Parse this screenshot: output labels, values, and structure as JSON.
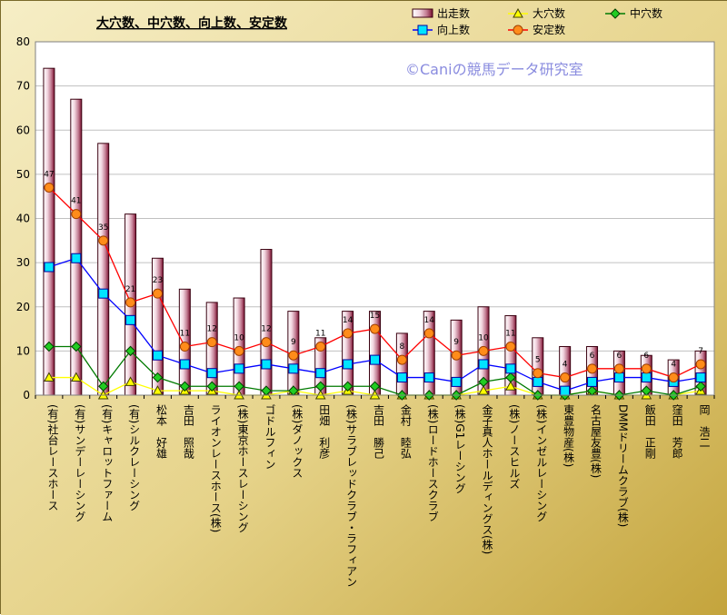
{
  "chart_data": {
    "type": "bar",
    "title": "大穴数、中穴数、向上数、安定数",
    "watermark": "©Caniの競馬データ研究室",
    "ylim": [
      0,
      80
    ],
    "yticks": [
      0,
      10,
      20,
      30,
      40,
      50,
      60,
      70,
      80
    ],
    "grid": "horizontal",
    "legend_position": "top-right",
    "categories": [
      "(有)社台レースホース",
      "(有)サンデーレーシング",
      "(有)キャロットファーム",
      "(有)シルクレーシング",
      "松本　好雄",
      "吉田　照哉",
      "ライオンレースホース(株)",
      "(株)東京ホースレーシング",
      "ゴドルフィン",
      "(株)ダノックス",
      "田畑　利彦",
      "(株)サラブレッドクラブ・ラフィアン",
      "吉田　勝己",
      "金村　睦弘",
      "(株)ロードホースクラブ",
      "(株)G1レーシング",
      "金子真人ホールディングス(株)",
      "(株)ノースヒルズ",
      "(株)インゼルレーシング",
      "東豊物産(株)",
      "名古屋友豊(株)",
      "DMMドリームクラブ(株)",
      "飯田　正剛",
      "窪田　芳郎",
      "岡　浩二"
    ],
    "series": [
      {
        "name": "出走数",
        "kind": "bar",
        "color": "#7a1030",
        "values": [
          74,
          67,
          57,
          41,
          31,
          24,
          21,
          22,
          33,
          19,
          13,
          19,
          19,
          14,
          19,
          17,
          20,
          18,
          13,
          11,
          11,
          10,
          9,
          8,
          10
        ]
      },
      {
        "name": "大穴数",
        "kind": "line",
        "color": "#ffff00",
        "marker": "triangle",
        "values": [
          4,
          4,
          0,
          3,
          1,
          1,
          1,
          0,
          0,
          1,
          0,
          1,
          0,
          0,
          0,
          0,
          1,
          2,
          0,
          0,
          1,
          0,
          0,
          0,
          1
        ]
      },
      {
        "name": "中穴数",
        "kind": "line",
        "color": "#007a00",
        "marker": "diamond",
        "values": [
          11,
          11,
          2,
          10,
          4,
          2,
          2,
          2,
          1,
          1,
          2,
          2,
          2,
          0,
          0,
          0,
          3,
          4,
          0,
          0,
          1,
          0,
          1,
          0,
          2
        ]
      },
      {
        "name": "向上数",
        "kind": "line",
        "color": "#0000ff",
        "marker": "square",
        "values": [
          29,
          31,
          23,
          17,
          9,
          7,
          5,
          6,
          7,
          6,
          5,
          7,
          8,
          4,
          4,
          3,
          7,
          6,
          3,
          1,
          3,
          4,
          4,
          3,
          4
        ]
      },
      {
        "name": "安定数",
        "kind": "line",
        "color": "#ff0000",
        "marker": "circle",
        "values": [
          47,
          41,
          35,
          21,
          23,
          11,
          12,
          10,
          12,
          9,
          11,
          14,
          15,
          8,
          14,
          9,
          10,
          11,
          5,
          4,
          6,
          6,
          6,
          4,
          7
        ]
      }
    ],
    "data_labels": {
      "series": "安定数",
      "values": [
        47,
        41,
        35,
        21,
        23,
        11,
        12,
        10,
        12,
        9,
        11,
        14,
        15,
        8,
        14,
        9,
        10,
        11,
        5,
        4,
        6,
        6,
        6,
        4,
        7
      ]
    }
  },
  "colors": {
    "plot_background": "#ffffff",
    "outer_background_light": "#f3e9b4",
    "outer_background_dark": "#cdb24a",
    "grid": "#c0c0c0",
    "axis": "#000000",
    "marker_fill_triangle": "#ffff00",
    "marker_fill_diamond": "#22cc22",
    "marker_fill_square": "#00e5ff",
    "marker_fill_circle": "#ff8c1a"
  }
}
